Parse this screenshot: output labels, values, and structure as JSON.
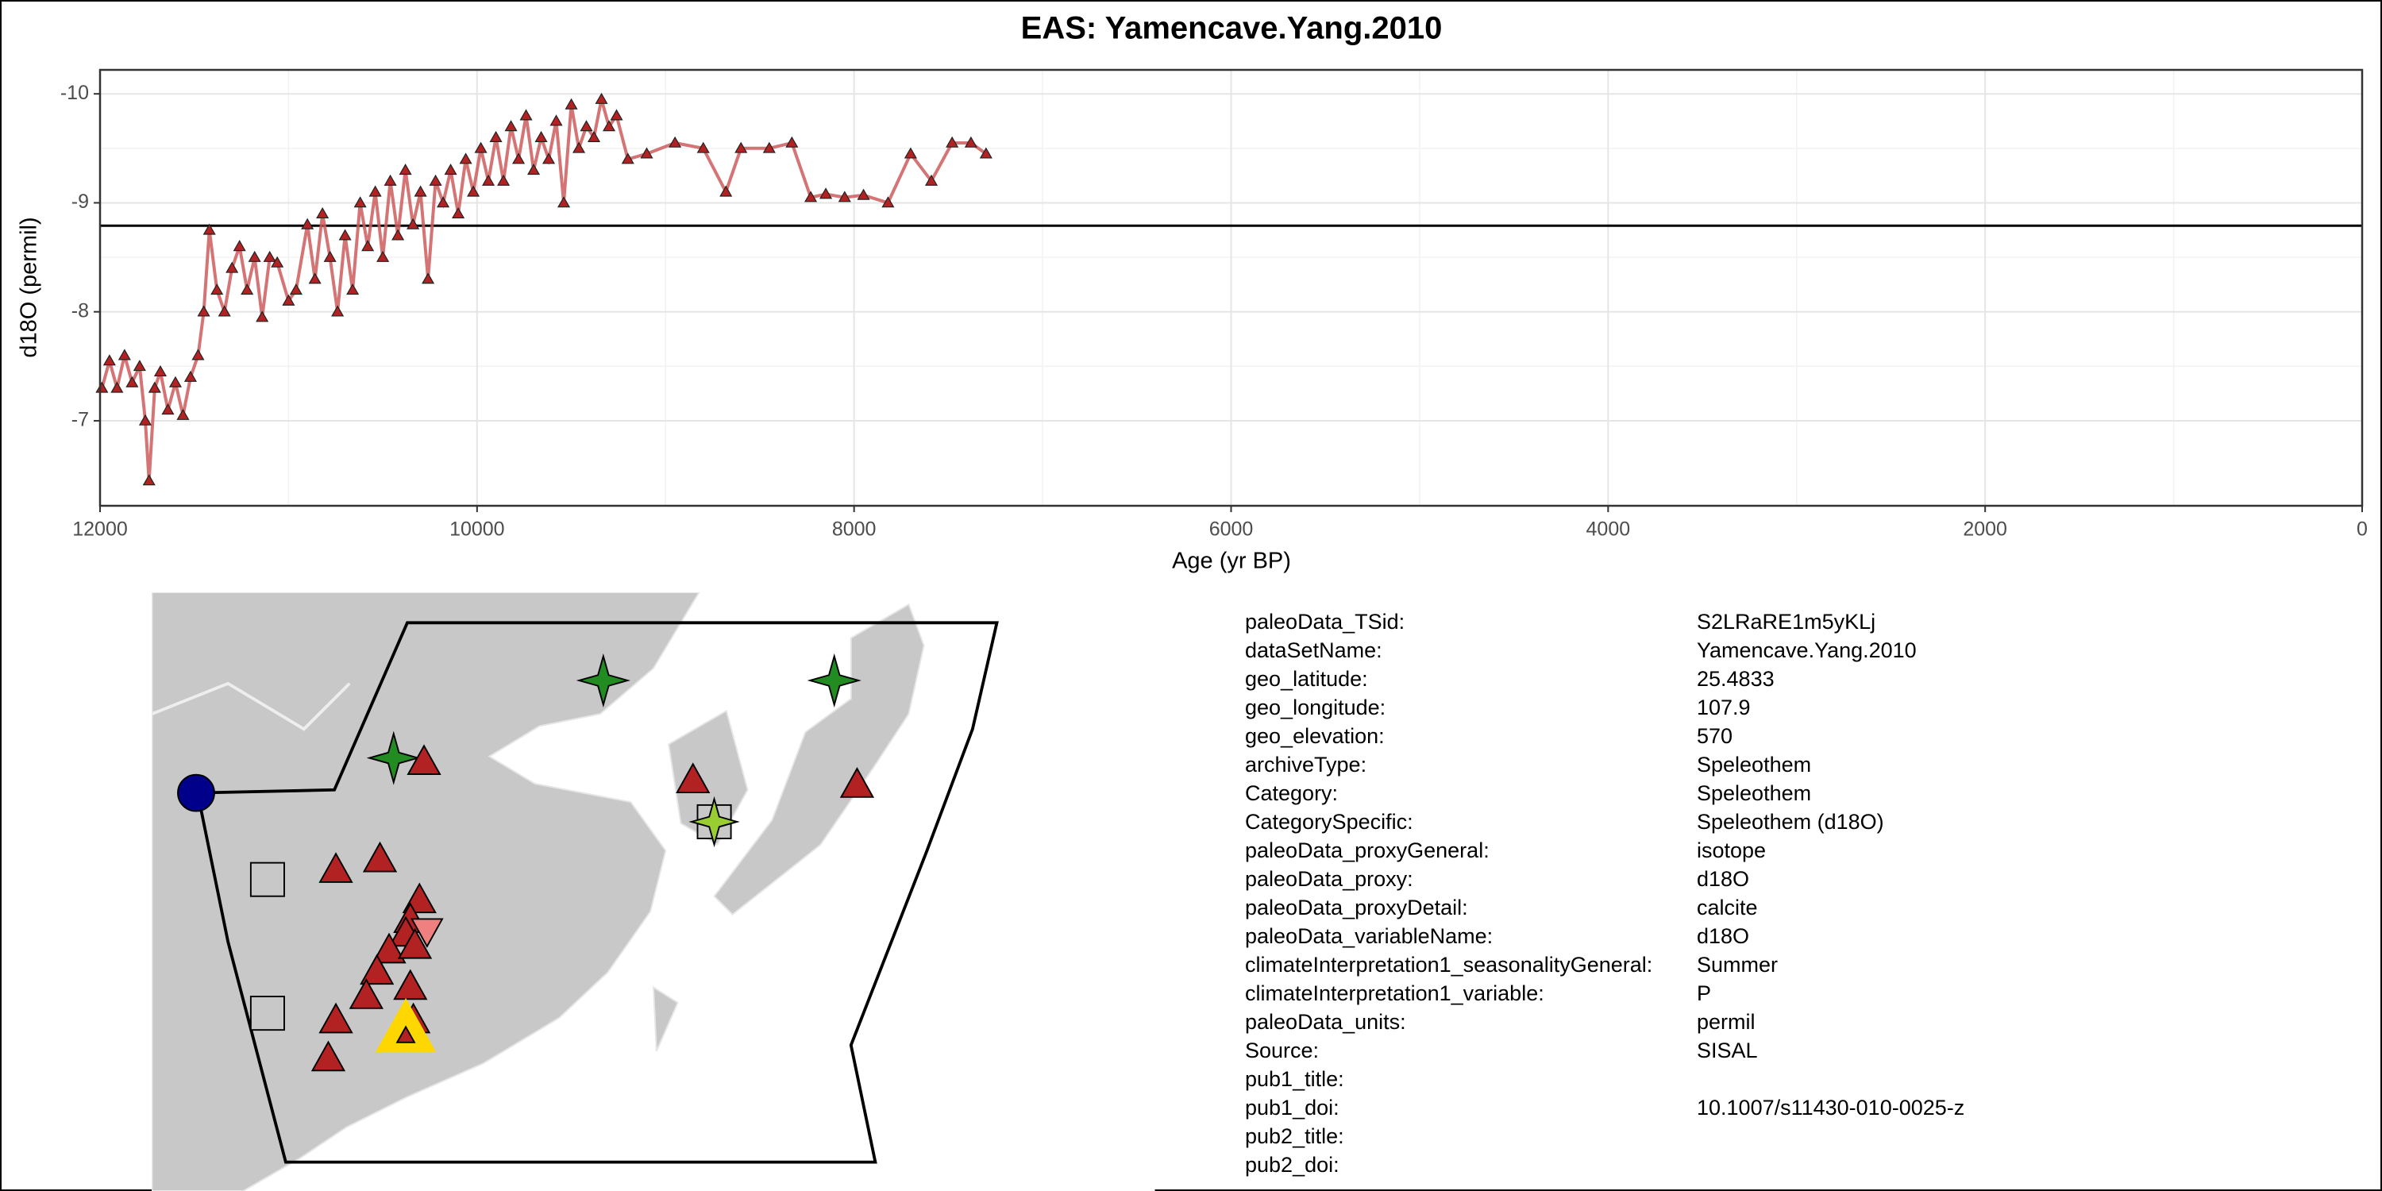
{
  "chart_data": {
    "type": "line",
    "title": "EAS: Yamencave.Yang.2010",
    "x_label": "Age (yr BP)",
    "y_label": "d18O (permil)",
    "x": [
      11990,
      11950,
      11910,
      11870,
      11830,
      11790,
      11760,
      11740,
      11710,
      11680,
      11640,
      11600,
      11560,
      11520,
      11480,
      11450,
      11420,
      11380,
      11340,
      11300,
      11260,
      11220,
      11180,
      11140,
      11100,
      11060,
      11000,
      10960,
      10900,
      10860,
      10820,
      10780,
      10740,
      10700,
      10660,
      10620,
      10580,
      10540,
      10500,
      10460,
      10420,
      10380,
      10340,
      10300,
      10260,
      10220,
      10180,
      10140,
      10100,
      10060,
      10020,
      9980,
      9940,
      9900,
      9860,
      9820,
      9780,
      9740,
      9700,
      9660,
      9620,
      9580,
      9540,
      9500,
      9460,
      9420,
      9380,
      9340,
      9300,
      9260,
      9200,
      9100,
      8950,
      8800,
      8680,
      8600,
      8450,
      8330,
      8230,
      8150,
      8050,
      7950,
      7820,
      7700,
      7590,
      7480,
      7380,
      7300
    ],
    "series": [
      {
        "values": [
          -7.3,
          -7.55,
          -7.3,
          -7.6,
          -7.35,
          -7.5,
          -7.0,
          -6.45,
          -7.3,
          -7.45,
          -7.1,
          -7.35,
          -7.05,
          -7.4,
          -7.6,
          -8.0,
          -8.75,
          -8.2,
          -8.0,
          -8.4,
          -8.6,
          -8.2,
          -8.5,
          -7.95,
          -8.5,
          -8.45,
          -8.1,
          -8.2,
          -8.8,
          -8.3,
          -8.9,
          -8.5,
          -8.0,
          -8.7,
          -8.2,
          -9.0,
          -8.6,
          -9.1,
          -8.5,
          -9.2,
          -8.7,
          -9.3,
          -8.8,
          -9.1,
          -8.3,
          -9.2,
          -9.0,
          -9.3,
          -8.9,
          -9.4,
          -9.1,
          -9.5,
          -9.2,
          -9.6,
          -9.2,
          -9.7,
          -9.4,
          -9.8,
          -9.3,
          -9.6,
          -9.4,
          -9.75,
          -9.0,
          -9.9,
          -9.5,
          -9.7,
          -9.6,
          -9.95,
          -9.7,
          -9.8,
          -9.4,
          -9.45,
          -9.55,
          -9.5,
          -9.1,
          -9.5,
          -9.5,
          -9.55,
          -9.05,
          -9.08,
          -9.05,
          -9.07,
          -9.0,
          -9.45,
          -9.2,
          -9.55,
          -9.55,
          -9.45
        ],
        "color": "#b22222",
        "line_color": "#cd5c5c"
      }
    ],
    "xlim": [
      12000,
      0
    ],
    "xticks": [
      12000,
      10000,
      8000,
      6000,
      4000,
      2000,
      0
    ],
    "ylim": [
      -6.22,
      -10.22
    ],
    "yticks": [
      -10,
      -9,
      -8,
      -7
    ],
    "hline": -8.79,
    "grid": true
  },
  "metadata": {
    "rows": [
      [
        "paleoData_TSid:",
        "S2LRaRE1m5yKLj"
      ],
      [
        "dataSetName:",
        "Yamencave.Yang.2010"
      ],
      [
        "geo_latitude:",
        "25.4833"
      ],
      [
        "geo_longitude:",
        "107.9"
      ],
      [
        "geo_elevation:",
        "570"
      ],
      [
        "archiveType:",
        "Speleothem"
      ],
      [
        "Category:",
        "Speleothem"
      ],
      [
        "CategorySpecific:",
        "Speleothem (d18O)"
      ],
      [
        "paleoData_proxyGeneral:",
        "isotope"
      ],
      [
        "paleoData_proxy:",
        "d18O"
      ],
      [
        "paleoData_proxyDetail:",
        "calcite"
      ],
      [
        "paleoData_variableName:",
        "d18O"
      ],
      [
        "climateInterpretation1_seasonalityGeneral:",
        "Summer"
      ],
      [
        "climateInterpretation1_variable:",
        "P"
      ],
      [
        "paleoData_units:",
        "permil"
      ],
      [
        "Source:",
        "SISAL"
      ],
      [
        "pub1_title:"
      ],
      [
        "pub1_doi:",
        "10.1007/s11430-010-0025-z"
      ],
      [
        "pub2_title:"
      ],
      [
        "pub2_doi:"
      ]
    ]
  }
}
